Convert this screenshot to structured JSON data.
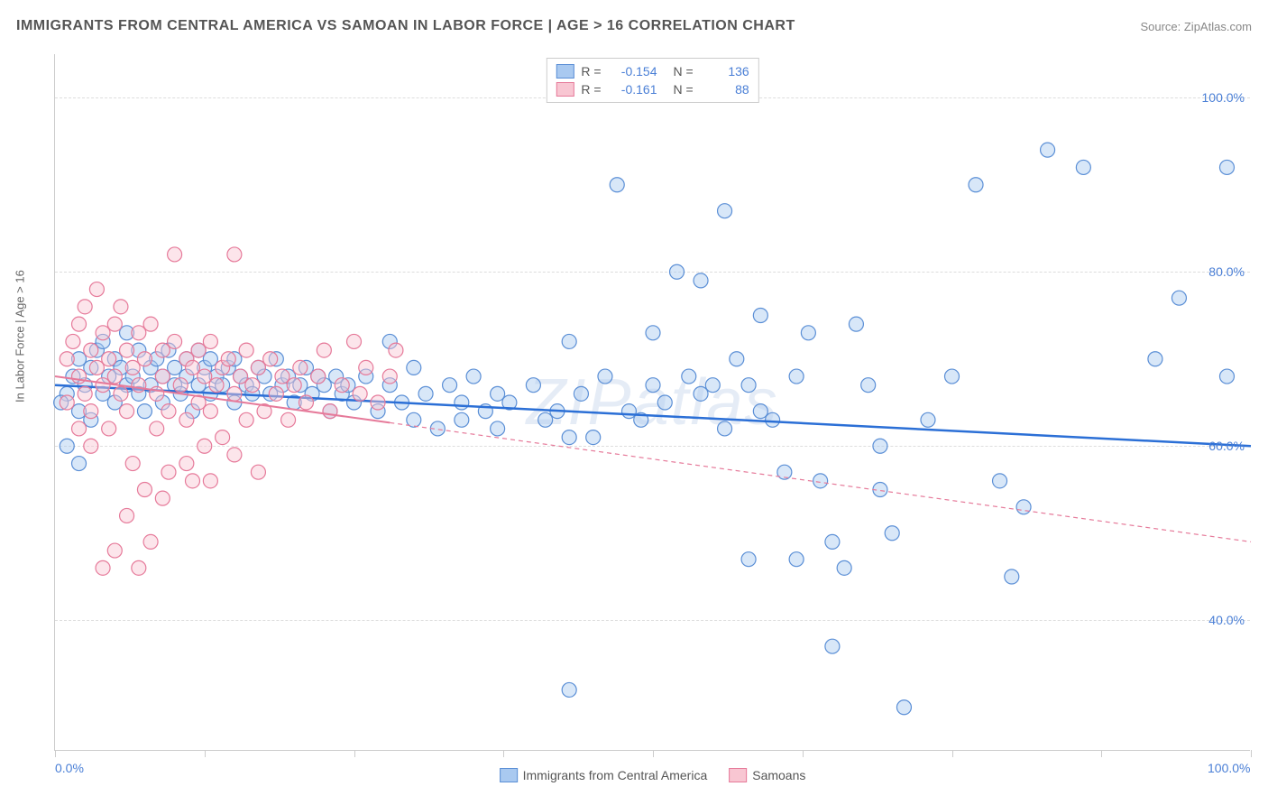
{
  "title": "IMMIGRANTS FROM CENTRAL AMERICA VS SAMOAN IN LABOR FORCE | AGE > 16 CORRELATION CHART",
  "source": "Source: ZipAtlas.com",
  "watermark": "ZIPatlas",
  "ylabel_axis": "In Labor Force | Age > 16",
  "chart": {
    "type": "scatter",
    "xlim": [
      0,
      100
    ],
    "ylim": [
      25,
      105
    ],
    "y_gridlines": [
      40,
      60,
      80,
      100
    ],
    "y_labels": [
      "40.0%",
      "60.0%",
      "80.0%",
      "100.0%"
    ],
    "x_ticks": [
      0,
      12.5,
      25,
      37.5,
      50,
      62.5,
      75,
      87.5,
      100
    ],
    "x_labels_shown": {
      "0": "0.0%",
      "100": "100.0%"
    },
    "background": "#ffffff",
    "grid_color": "#dddddd",
    "axis_color": "#cccccc",
    "point_radius": 8,
    "point_opacity": 0.45,
    "series": [
      {
        "id": "central_america",
        "label": "Immigrants from Central America",
        "fill": "#a9c9f0",
        "stroke": "#5b8fd6",
        "R": "-0.154",
        "N": "136",
        "trend": {
          "x0": 0,
          "y0": 67,
          "x1": 100,
          "y1": 60,
          "solid_end_x": 100,
          "color": "#2b6fd6",
          "width": 2.5
        },
        "points": [
          [
            1,
            66
          ],
          [
            1.5,
            68
          ],
          [
            2,
            64
          ],
          [
            2,
            70
          ],
          [
            2.5,
            67
          ],
          [
            3,
            69
          ],
          [
            3,
            63
          ],
          [
            3.5,
            71
          ],
          [
            4,
            66
          ],
          [
            4,
            72
          ],
          [
            4.5,
            68
          ],
          [
            5,
            70
          ],
          [
            5,
            65
          ],
          [
            5.5,
            69
          ],
          [
            6,
            67
          ],
          [
            6,
            73
          ],
          [
            6.5,
            68
          ],
          [
            7,
            66
          ],
          [
            7,
            71
          ],
          [
            7.5,
            64
          ],
          [
            8,
            69
          ],
          [
            8,
            67
          ],
          [
            8.5,
            70
          ],
          [
            9,
            68
          ],
          [
            9,
            65
          ],
          [
            9.5,
            71
          ],
          [
            10,
            67
          ],
          [
            10,
            69
          ],
          [
            10.5,
            66
          ],
          [
            11,
            70
          ],
          [
            11,
            68
          ],
          [
            11.5,
            64
          ],
          [
            12,
            67
          ],
          [
            12,
            71
          ],
          [
            12.5,
            69
          ],
          [
            13,
            66
          ],
          [
            13,
            70
          ],
          [
            13.5,
            68
          ],
          [
            14,
            67
          ],
          [
            14.5,
            69
          ],
          [
            15,
            65
          ],
          [
            15,
            70
          ],
          [
            15.5,
            68
          ],
          [
            16,
            67
          ],
          [
            16.5,
            66
          ],
          [
            17,
            69
          ],
          [
            17.5,
            68
          ],
          [
            18,
            66
          ],
          [
            18.5,
            70
          ],
          [
            19,
            67
          ],
          [
            19.5,
            68
          ],
          [
            20,
            65
          ],
          [
            20.5,
            67
          ],
          [
            21,
            69
          ],
          [
            21.5,
            66
          ],
          [
            22,
            68
          ],
          [
            22.5,
            67
          ],
          [
            23,
            64
          ],
          [
            23.5,
            68
          ],
          [
            24,
            66
          ],
          [
            24.5,
            67
          ],
          [
            25,
            65
          ],
          [
            26,
            68
          ],
          [
            27,
            64
          ],
          [
            28,
            67
          ],
          [
            28,
            72
          ],
          [
            29,
            65
          ],
          [
            30,
            63
          ],
          [
            30,
            69
          ],
          [
            31,
            66
          ],
          [
            32,
            62
          ],
          [
            33,
            67
          ],
          [
            34,
            65
          ],
          [
            34,
            63
          ],
          [
            35,
            68
          ],
          [
            36,
            64
          ],
          [
            37,
            66
          ],
          [
            37,
            62
          ],
          [
            38,
            65
          ],
          [
            40,
            67
          ],
          [
            41,
            63
          ],
          [
            42,
            64
          ],
          [
            43,
            72
          ],
          [
            43,
            61
          ],
          [
            44,
            66
          ],
          [
            45,
            61
          ],
          [
            46,
            68
          ],
          [
            47,
            90
          ],
          [
            48,
            64
          ],
          [
            49,
            63
          ],
          [
            50,
            67
          ],
          [
            50,
            73
          ],
          [
            51,
            65
          ],
          [
            52,
            80
          ],
          [
            53,
            68
          ],
          [
            54,
            79
          ],
          [
            54,
            66
          ],
          [
            55,
            67
          ],
          [
            56,
            87
          ],
          [
            56,
            62
          ],
          [
            57,
            70
          ],
          [
            58,
            67
          ],
          [
            58,
            47
          ],
          [
            59,
            64
          ],
          [
            59,
            75
          ],
          [
            60,
            63
          ],
          [
            61,
            57
          ],
          [
            62,
            68
          ],
          [
            62,
            47
          ],
          [
            63,
            73
          ],
          [
            64,
            56
          ],
          [
            65,
            49
          ],
          [
            65,
            37
          ],
          [
            66,
            46
          ],
          [
            67,
            74
          ],
          [
            68,
            67
          ],
          [
            69,
            55
          ],
          [
            69,
            60
          ],
          [
            70,
            50
          ],
          [
            71,
            30
          ],
          [
            73,
            63
          ],
          [
            75,
            68
          ],
          [
            77,
            90
          ],
          [
            79,
            56
          ],
          [
            80,
            45
          ],
          [
            81,
            53
          ],
          [
            83,
            94
          ],
          [
            86,
            92
          ],
          [
            92,
            70
          ],
          [
            94,
            77
          ],
          [
            98,
            92
          ],
          [
            98,
            68
          ],
          [
            1,
            60
          ],
          [
            2,
            58
          ],
          [
            0.5,
            65
          ],
          [
            43,
            32
          ]
        ]
      },
      {
        "id": "samoan",
        "label": "Samoans",
        "fill": "#f8c6d2",
        "stroke": "#e67a9a",
        "R": "-0.161",
        "N": "88",
        "trend": {
          "x0": 0,
          "y0": 68,
          "x1": 100,
          "y1": 49,
          "solid_end_x": 28,
          "color": "#e67a9a",
          "width": 2,
          "dash": "5,4"
        },
        "points": [
          [
            1,
            70
          ],
          [
            1,
            65
          ],
          [
            1.5,
            72
          ],
          [
            2,
            68
          ],
          [
            2,
            74
          ],
          [
            2.5,
            66
          ],
          [
            2.5,
            76
          ],
          [
            3,
            71
          ],
          [
            3,
            64
          ],
          [
            3.5,
            69
          ],
          [
            3.5,
            78
          ],
          [
            4,
            73
          ],
          [
            4,
            67
          ],
          [
            4.5,
            70
          ],
          [
            4.5,
            62
          ],
          [
            5,
            74
          ],
          [
            5,
            68
          ],
          [
            5.5,
            66
          ],
          [
            5.5,
            76
          ],
          [
            6,
            71
          ],
          [
            6,
            64
          ],
          [
            6.5,
            69
          ],
          [
            6.5,
            58
          ],
          [
            7,
            73
          ],
          [
            7,
            67
          ],
          [
            7.5,
            70
          ],
          [
            7.5,
            55
          ],
          [
            8,
            74
          ],
          [
            8,
            49
          ],
          [
            8.5,
            66
          ],
          [
            8.5,
            62
          ],
          [
            9,
            71
          ],
          [
            9,
            68
          ],
          [
            9.5,
            64
          ],
          [
            9.5,
            57
          ],
          [
            10,
            72
          ],
          [
            10,
            82
          ],
          [
            10.5,
            67
          ],
          [
            11,
            70
          ],
          [
            11,
            63
          ],
          [
            11.5,
            69
          ],
          [
            11.5,
            56
          ],
          [
            12,
            71
          ],
          [
            12,
            65
          ],
          [
            12.5,
            68
          ],
          [
            12.5,
            60
          ],
          [
            13,
            72
          ],
          [
            13,
            64
          ],
          [
            13.5,
            67
          ],
          [
            14,
            69
          ],
          [
            14,
            61
          ],
          [
            14.5,
            70
          ],
          [
            15,
            66
          ],
          [
            15,
            82
          ],
          [
            15.5,
            68
          ],
          [
            16,
            71
          ],
          [
            16,
            63
          ],
          [
            16.5,
            67
          ],
          [
            17,
            69
          ],
          [
            17.5,
            64
          ],
          [
            18,
            70
          ],
          [
            18.5,
            66
          ],
          [
            19,
            68
          ],
          [
            19.5,
            63
          ],
          [
            20,
            67
          ],
          [
            20.5,
            69
          ],
          [
            21,
            65
          ],
          [
            22,
            68
          ],
          [
            22.5,
            71
          ],
          [
            23,
            64
          ],
          [
            24,
            67
          ],
          [
            25,
            72
          ],
          [
            25.5,
            66
          ],
          [
            26,
            69
          ],
          [
            27,
            65
          ],
          [
            28,
            68
          ],
          [
            28.5,
            71
          ],
          [
            4,
            46
          ],
          [
            5,
            48
          ],
          [
            6,
            52
          ],
          [
            7,
            46
          ],
          [
            3,
            60
          ],
          [
            2,
            62
          ],
          [
            9,
            54
          ],
          [
            11,
            58
          ],
          [
            13,
            56
          ],
          [
            15,
            59
          ],
          [
            17,
            57
          ]
        ]
      }
    ]
  }
}
